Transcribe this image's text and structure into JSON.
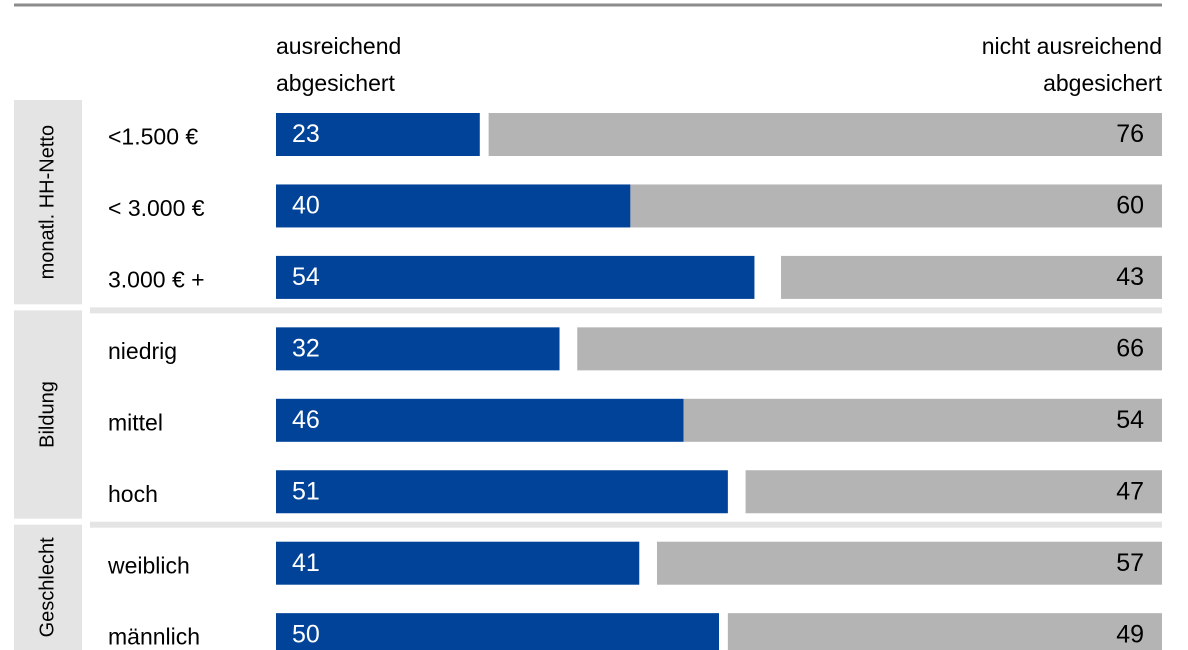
{
  "chart_data": {
    "type": "diverging_bar",
    "categories": [
      "<1.500 €",
      "< 3.000 €",
      "3.000 € +",
      "niedrig",
      "mittel",
      "hoch",
      "weiblich",
      "männlich"
    ],
    "groups": [
      {
        "label": "monatl. HH-Netto",
        "span": 3
      },
      {
        "label": "Bildung",
        "span": 3
      },
      {
        "label": "Geschlecht",
        "span": 2
      }
    ],
    "series": [
      {
        "name": "ausreichend abgesichert",
        "color": "#004399",
        "values": [
          23,
          40,
          54,
          32,
          46,
          51,
          41,
          50
        ]
      },
      {
        "name": "nicht ausreichend abgesichert",
        "color": "#b4b4b4",
        "values": [
          76,
          60,
          43,
          66,
          54,
          47,
          57,
          49
        ]
      }
    ],
    "xlim": [
      0,
      100
    ]
  }
}
